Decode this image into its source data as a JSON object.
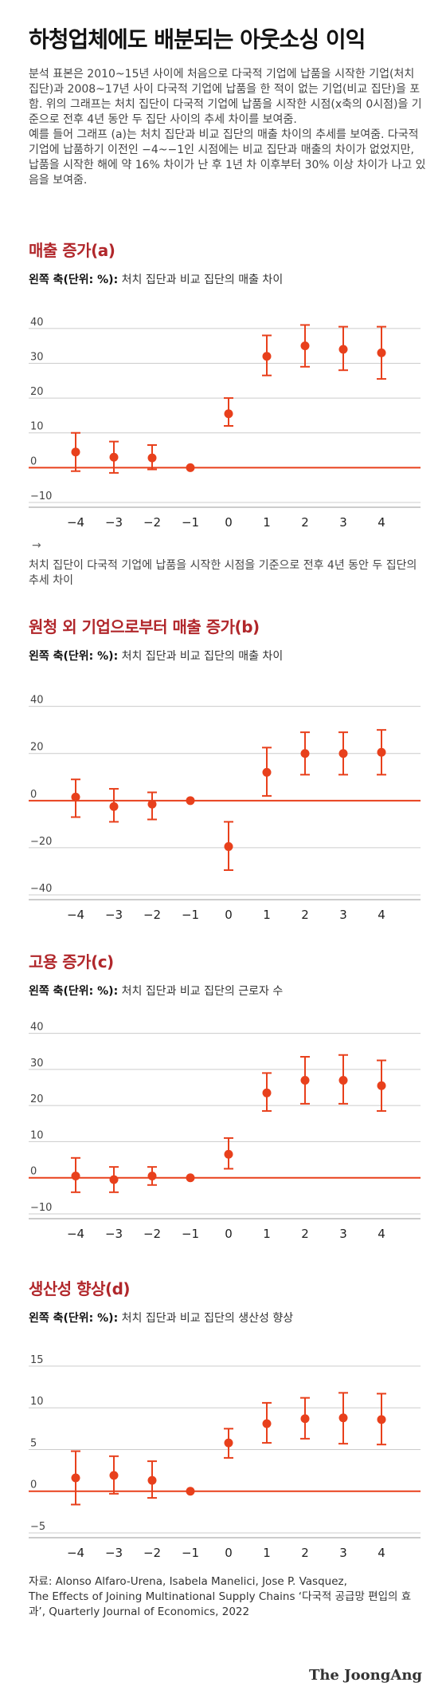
{
  "header": {
    "title": "하청업체에도 배분되는 아웃소싱 이익",
    "intro_1": "분석 표본은 2010~15년 사이에 처음으로 다국적 기업에 납품을 시작한 기업(처치 집단)과 2008~17년 사이 다국적 기업에 납품을 한 적이 없는 기업(비교 집단)을 포함. 위의 그래프는 처치 집단이 다국적 기업에 납품을 시작한 시점(x축의 0시점)을 기준으로 전후 4년 동안 두 집단 사이의 추세 차이를 보여줌.",
    "intro_2": "예를 들어 그래프 (a)는 처치 집단과 비교 집단의 매출 차이의 추세를 보여줌. 다국적 기업에 납품하기 이전인 −4~−1인 시점에는 비교 집단과 매출의 차이가 없었지만, 납품을 시작한 해에 약 16% 차이가 난 후 1년 차 이후부터 30% 이상 차이가 나고 있음을 보여줌."
  },
  "colors": {
    "accent": "#e8401c",
    "title_red": "#b1272b",
    "grid": "#cccccc"
  },
  "note": {
    "arrow": "→",
    "text": "처치 집단이 다국적 기업에 납품을 시작한 시점을 기준으로 전후 4년 동안 두 집단의 추세 차이"
  },
  "source": {
    "line1": "자료: Alonso Alfaro-Urena, Isabela Manelici, Jose P. Vasquez,",
    "line2": "The Effects of Joining Multinational Supply Chains ‘다국적 공급망 편입의 효과’, Quarterly Journal of Economics, 2022"
  },
  "logo": "The JoongAng",
  "chart_data": [
    {
      "type": "scatter",
      "title": "매출 증가(a)",
      "axis_label": "왼쪽 축(단위: %):",
      "axis_desc": "처치 집단과 비교 집단의 매출 차이",
      "x": [
        -4,
        -3,
        -2,
        -1,
        0,
        1,
        2,
        3,
        4
      ],
      "y": [
        4.5,
        3,
        2.8,
        0,
        15.5,
        32,
        35,
        34,
        33
      ],
      "err_low": [
        -1,
        -1.5,
        -0.5,
        0,
        12,
        26.5,
        29,
        28,
        25.5
      ],
      "err_high": [
        10,
        7.5,
        6.5,
        0,
        20,
        38,
        41,
        40.5,
        40.5
      ],
      "ylim": [
        -10,
        45
      ],
      "yticks": [
        -10,
        0,
        10,
        20,
        30,
        40
      ],
      "ytick_labels": [
        "−10",
        "0",
        "10",
        "20",
        "30",
        "40"
      ]
    },
    {
      "type": "scatter",
      "title": "원청 외 기업으로부터 매출 증가(b)",
      "axis_label": "왼쪽 축(단위: %):",
      "axis_desc": "처치 집단과 비교 집단의 매출 차이",
      "x": [
        -4,
        -3,
        -2,
        -1,
        0,
        1,
        2,
        3,
        4
      ],
      "y": [
        1.5,
        -2.5,
        -1.5,
        0,
        -19.5,
        12,
        20,
        20,
        20.5
      ],
      "err_low": [
        -7,
        -9,
        -8,
        0,
        -29.5,
        2,
        11,
        11,
        11
      ],
      "err_high": [
        9,
        5,
        3.5,
        0,
        -9,
        22.5,
        29,
        29,
        30
      ],
      "ylim": [
        -40,
        48
      ],
      "yticks": [
        -40,
        -20,
        0,
        20,
        40
      ],
      "ytick_labels": [
        "−40",
        "−20",
        "0",
        "20",
        "40"
      ]
    },
    {
      "type": "scatter",
      "title": "고용 증가(c)",
      "axis_label": "왼쪽 축(단위: %):",
      "axis_desc": "처치 집단과 비교 집단의 근로자 수",
      "x": [
        -4,
        -3,
        -2,
        -1,
        0,
        1,
        2,
        3,
        4
      ],
      "y": [
        0.5,
        -0.5,
        0.5,
        0,
        6.5,
        23.5,
        27,
        27,
        25.5
      ],
      "err_low": [
        -4,
        -4,
        -2,
        0,
        2.5,
        18.5,
        20.5,
        20.5,
        18.5
      ],
      "err_high": [
        5.5,
        3,
        3,
        0,
        11,
        29,
        33.5,
        34,
        32.5
      ],
      "ylim": [
        -10,
        43
      ],
      "yticks": [
        -10,
        0,
        10,
        20,
        30,
        40
      ],
      "ytick_labels": [
        "−10",
        "0",
        "10",
        "20",
        "30",
        "40"
      ]
    },
    {
      "type": "scatter",
      "title": "생산성 향상(d)",
      "axis_label": "왼쪽 축(단위: %):",
      "axis_desc": "처치 집단과 비교 집단의 생산성 향상",
      "x": [
        -4,
        -3,
        -2,
        -1,
        0,
        1,
        2,
        3,
        4
      ],
      "y": [
        1.6,
        1.9,
        1.3,
        0,
        5.8,
        8.1,
        8.7,
        8.8,
        8.6
      ],
      "err_low": [
        -1.6,
        -0.3,
        -0.8,
        0,
        4,
        5.8,
        6.3,
        5.7,
        5.6
      ],
      "err_high": [
        4.8,
        4.2,
        3.6,
        0,
        7.5,
        10.6,
        11.2,
        11.8,
        11.7
      ],
      "ylim": [
        -5,
        17
      ],
      "yticks": [
        -5,
        0,
        5,
        10,
        15
      ],
      "ytick_labels": [
        "−5",
        "0",
        "5",
        "10",
        "15"
      ]
    }
  ]
}
